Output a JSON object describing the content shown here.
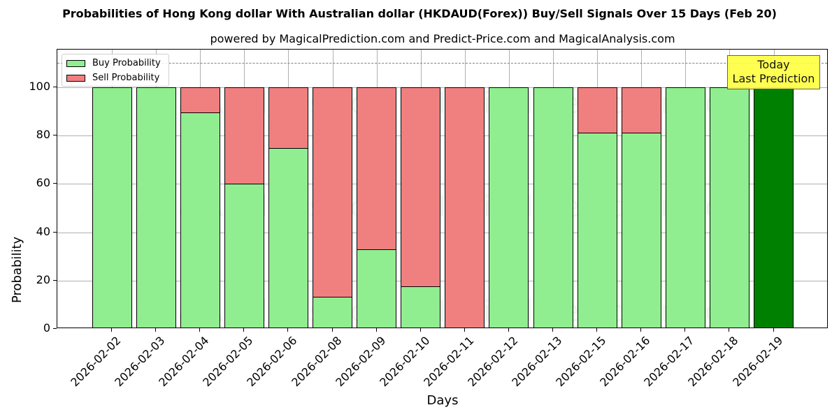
{
  "chart_data": {
    "type": "bar",
    "stacked": true,
    "title": "Probabilities of Hong Kong dollar With Australian dollar (HKDAUD(Forex)) Buy/Sell Signals Over 15 Days (Feb 20)",
    "subtitle": "powered by MagicalPrediction.com and Predict-Price.com and MagicalAnalysis.com",
    "xlabel": "Days",
    "ylabel": "Probability",
    "ylim": [
      0,
      115
    ],
    "yticks": [
      0,
      20,
      40,
      60,
      80,
      100
    ],
    "reference_line": {
      "y": 110,
      "style": "dashed",
      "color": "#808080"
    },
    "grid": true,
    "legend_position": "upper left",
    "categories": [
      "2026-02-02",
      "2026-02-03",
      "2026-02-04",
      "2026-02-05",
      "2026-02-06",
      "2026-02-08",
      "2026-02-09",
      "2026-02-10",
      "2026-02-11",
      "2026-02-12",
      "2026-02-13",
      "2026-02-15",
      "2026-02-16",
      "2026-02-17",
      "2026-02-18",
      "2026-02-19"
    ],
    "series": [
      {
        "name": "Buy Probability",
        "color": "#90ee90",
        "values": [
          100,
          100,
          89.7,
          60,
          75,
          13.4,
          32.9,
          17.7,
          0,
          100,
          100,
          81.3,
          81.3,
          100,
          100,
          100
        ]
      },
      {
        "name": "Sell Probability",
        "color": "#f08080",
        "values": [
          0,
          0,
          10.3,
          40,
          25,
          86.6,
          67.1,
          82.3,
          100,
          0,
          0,
          18.7,
          18.7,
          0,
          0,
          0
        ]
      }
    ],
    "highlight": {
      "category": "2026-02-19",
      "color": "#008000",
      "annotation": "Today\nLast Prediction"
    },
    "annotation": {
      "line1": "Today",
      "line2": "Last Prediction",
      "background": "#ffff44"
    },
    "watermarks": [
      "MagicalAnalysis.com",
      "MagicalPrediction.com"
    ]
  }
}
